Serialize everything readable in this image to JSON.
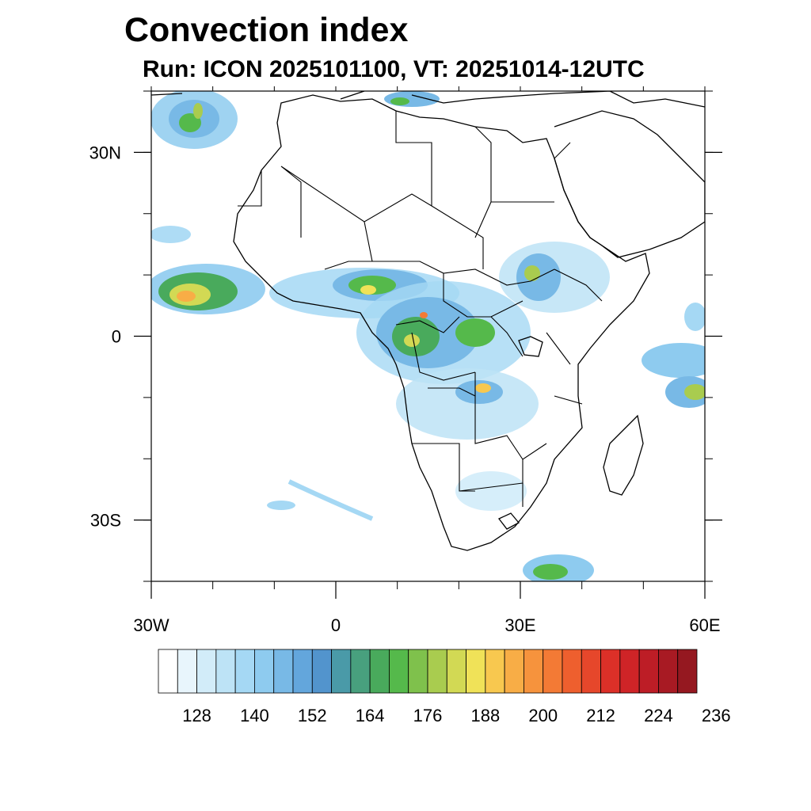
{
  "title": "Convection index",
  "subtitle": "Run: ICON 2025101100,  VT: 20251014-12UTC",
  "map": {
    "region": "Africa",
    "lat_range": [
      -40,
      40
    ],
    "lon_range": [
      -30,
      60
    ],
    "lat_ticks": [
      {
        "value": 30,
        "label": "30N"
      },
      {
        "value": 0,
        "label": "0"
      },
      {
        "value": -30,
        "label": "30S"
      }
    ],
    "lon_ticks": [
      {
        "value": -30,
        "label": "30W"
      },
      {
        "value": 0,
        "label": "0"
      },
      {
        "value": 30,
        "label": "30E"
      },
      {
        "value": 60,
        "label": "60E"
      }
    ]
  },
  "colorbar": {
    "labels": [
      "128",
      "140",
      "152",
      "164",
      "176",
      "188",
      "200",
      "212",
      "224",
      "236"
    ],
    "colors": [
      "#ffffff",
      "#e8f5fc",
      "#d2ecf9",
      "#bde3f6",
      "#a5d8f4",
      "#8ecbef",
      "#78b9e6",
      "#63a6dc",
      "#5294cd",
      "#4a9aa8",
      "#48a07e",
      "#49aa5c",
      "#55b94b",
      "#7fc14c",
      "#a9cc4f",
      "#d2d954",
      "#f0e258",
      "#f8c84f",
      "#f8ad46",
      "#f6933d",
      "#f37a35",
      "#ee5f2e",
      "#e6472b",
      "#dc3028",
      "#cf2427",
      "#bd1d26",
      "#a81a23",
      "#951820"
    ]
  },
  "chart_data": {
    "type": "heatmap",
    "title": "Convection index",
    "subtitle": "Run: ICON 2025101100,  VT: 20251014-12UTC",
    "xlabel": "",
    "ylabel": "",
    "xlim": [
      -30,
      60
    ],
    "ylim": [
      -40,
      40
    ],
    "x_tick_labels": [
      "30W",
      "0",
      "30E",
      "60E"
    ],
    "y_tick_labels": [
      "30N",
      "0",
      "30S"
    ],
    "colorbar_labels": [
      128,
      140,
      152,
      164,
      176,
      188,
      200,
      212,
      224,
      236
    ]
  }
}
